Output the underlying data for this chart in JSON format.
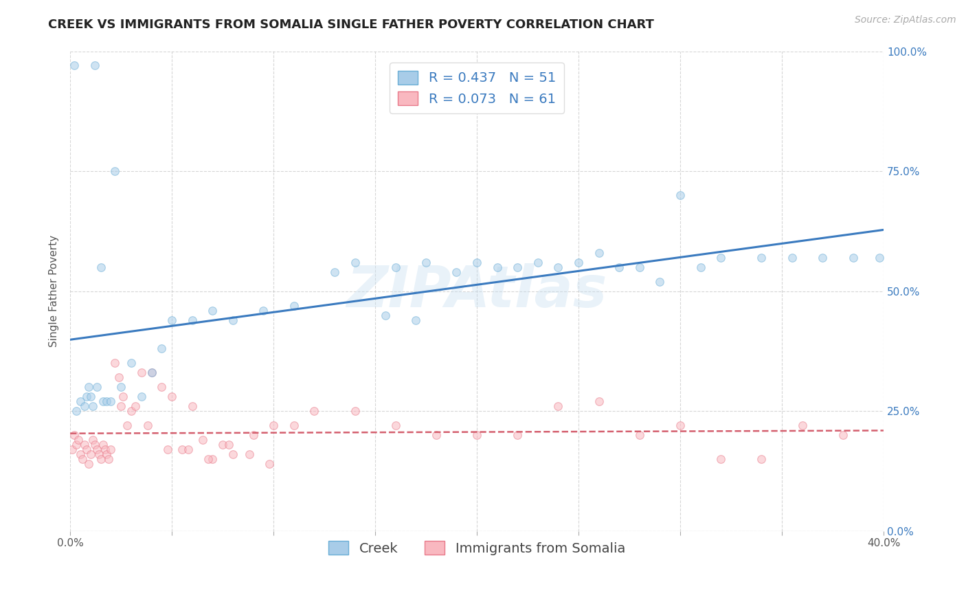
{
  "title": "CREEK VS IMMIGRANTS FROM SOMALIA SINGLE FATHER POVERTY CORRELATION CHART",
  "source": "Source: ZipAtlas.com",
  "ylabel": "Single Father Poverty",
  "watermark": "ZIPAtlas",
  "xlim": [
    0.0,
    0.4
  ],
  "ylim": [
    0.0,
    1.0
  ],
  "ytick_labels_right": [
    "0.0%",
    "25.0%",
    "50.0%",
    "75.0%",
    "100.0%"
  ],
  "yticks_right": [
    0.0,
    0.25,
    0.5,
    0.75,
    1.0
  ],
  "creek_color": "#a8cce8",
  "creek_edge_color": "#6aaed6",
  "somalia_color": "#f9b8c0",
  "somalia_edge_color": "#e87a8a",
  "creek_R": 0.437,
  "creek_N": 51,
  "somalia_R": 0.073,
  "somalia_N": 61,
  "creek_line_color": "#3a7abf",
  "somalia_line_color": "#d45f6e",
  "legend_value_color": "#3a7abf",
  "creek_scatter_x": [
    0.002,
    0.012,
    0.022,
    0.003,
    0.005,
    0.007,
    0.008,
    0.009,
    0.01,
    0.011,
    0.013,
    0.015,
    0.016,
    0.018,
    0.02,
    0.025,
    0.03,
    0.035,
    0.04,
    0.045,
    0.05,
    0.06,
    0.07,
    0.08,
    0.095,
    0.11,
    0.13,
    0.14,
    0.16,
    0.175,
    0.19,
    0.2,
    0.22,
    0.23,
    0.25,
    0.26,
    0.28,
    0.3,
    0.32,
    0.34,
    0.355,
    0.37,
    0.385,
    0.398,
    0.155,
    0.17,
    0.21,
    0.24,
    0.27,
    0.29,
    0.31
  ],
  "creek_scatter_y": [
    0.97,
    0.97,
    0.75,
    0.25,
    0.27,
    0.26,
    0.28,
    0.3,
    0.28,
    0.26,
    0.3,
    0.55,
    0.27,
    0.27,
    0.27,
    0.3,
    0.35,
    0.28,
    0.33,
    0.38,
    0.44,
    0.44,
    0.46,
    0.44,
    0.46,
    0.47,
    0.54,
    0.56,
    0.55,
    0.56,
    0.54,
    0.56,
    0.55,
    0.56,
    0.56,
    0.58,
    0.55,
    0.7,
    0.57,
    0.57,
    0.57,
    0.57,
    0.57,
    0.57,
    0.45,
    0.44,
    0.55,
    0.55,
    0.55,
    0.52,
    0.55
  ],
  "somalia_scatter_x": [
    0.001,
    0.002,
    0.003,
    0.004,
    0.005,
    0.006,
    0.007,
    0.008,
    0.009,
    0.01,
    0.011,
    0.012,
    0.013,
    0.014,
    0.015,
    0.016,
    0.017,
    0.018,
    0.019,
    0.02,
    0.022,
    0.024,
    0.026,
    0.028,
    0.03,
    0.035,
    0.04,
    0.045,
    0.05,
    0.055,
    0.06,
    0.065,
    0.07,
    0.075,
    0.08,
    0.09,
    0.1,
    0.11,
    0.12,
    0.14,
    0.16,
    0.18,
    0.2,
    0.22,
    0.24,
    0.26,
    0.28,
    0.3,
    0.32,
    0.34,
    0.36,
    0.38,
    0.025,
    0.032,
    0.038,
    0.048,
    0.058,
    0.068,
    0.078,
    0.088,
    0.098
  ],
  "somalia_scatter_y": [
    0.17,
    0.2,
    0.18,
    0.19,
    0.16,
    0.15,
    0.18,
    0.17,
    0.14,
    0.16,
    0.19,
    0.18,
    0.17,
    0.16,
    0.15,
    0.18,
    0.17,
    0.16,
    0.15,
    0.17,
    0.35,
    0.32,
    0.28,
    0.22,
    0.25,
    0.33,
    0.33,
    0.3,
    0.28,
    0.17,
    0.26,
    0.19,
    0.15,
    0.18,
    0.16,
    0.2,
    0.22,
    0.22,
    0.25,
    0.25,
    0.22,
    0.2,
    0.2,
    0.2,
    0.26,
    0.27,
    0.2,
    0.22,
    0.15,
    0.15,
    0.22,
    0.2,
    0.26,
    0.26,
    0.22,
    0.17,
    0.17,
    0.15,
    0.18,
    0.16,
    0.14
  ],
  "title_fontsize": 13,
  "axis_label_fontsize": 11,
  "tick_fontsize": 11,
  "legend_fontsize": 14,
  "source_fontsize": 10,
  "marker_size": 70,
  "marker_alpha": 0.55,
  "grid_color": "#bbbbbb",
  "grid_alpha": 0.6,
  "bg_color": "#ffffff"
}
